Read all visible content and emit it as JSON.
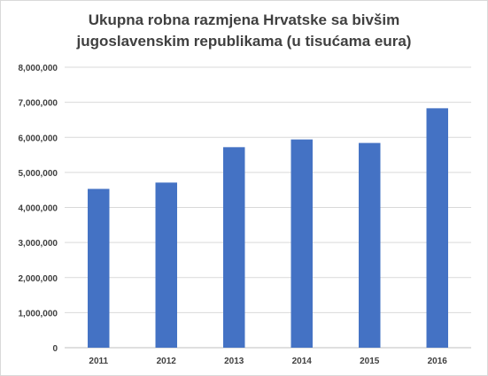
{
  "chart_data": {
    "type": "bar",
    "title_lines": [
      "Ukupna robna razmjena Hrvatske sa bivšim",
      "jugoslavenskim republikama (u tisućama eura)"
    ],
    "categories": [
      "2011",
      "2012",
      "2013",
      "2014",
      "2015",
      "2016"
    ],
    "values": [
      4530000,
      4710000,
      5720000,
      5940000,
      5840000,
      6830000
    ],
    "ylim": [
      0,
      8000000
    ],
    "y_ticks": [
      0,
      1000000,
      2000000,
      3000000,
      4000000,
      5000000,
      6000000,
      7000000,
      8000000
    ],
    "y_tick_labels": [
      "0",
      "1,000,000",
      "2,000,000",
      "3,000,000",
      "4,000,000",
      "5,000,000",
      "6,000,000",
      "7,000,000",
      "8,000,000"
    ],
    "grid": true,
    "legend": "none",
    "xlabel": "",
    "ylabel": "",
    "colors": {
      "bar": "#4472c4",
      "gridline": "#d9d9d9",
      "axis": "#bfbfbf",
      "text": "#404040"
    }
  }
}
